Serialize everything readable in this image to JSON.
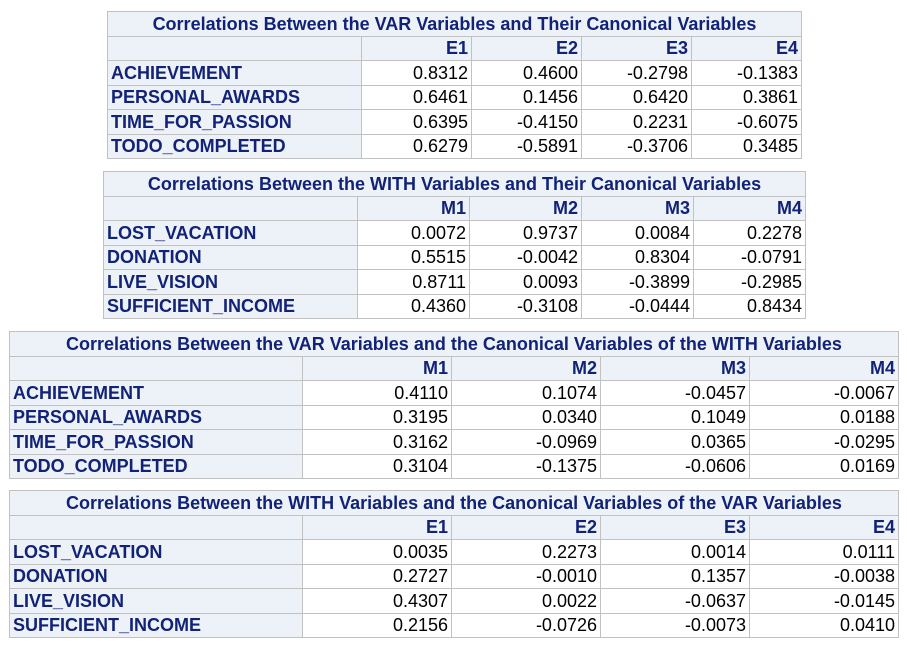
{
  "tables": [
    {
      "id": "var-canonical",
      "title": "Correlations Between the VAR Variables and Their Canonical Variables",
      "columns": [
        "E1",
        "E2",
        "E3",
        "E4"
      ],
      "rows": [
        {
          "label": "ACHIEVEMENT",
          "values": [
            "0.8312",
            "0.4600",
            "-0.2798",
            "-0.1383"
          ]
        },
        {
          "label": "PERSONAL_AWARDS",
          "values": [
            "0.6461",
            "0.1456",
            "0.6420",
            "0.3861"
          ]
        },
        {
          "label": "TIME_FOR_PASSION",
          "values": [
            "0.6395",
            "-0.4150",
            "0.2231",
            "-0.6075"
          ]
        },
        {
          "label": "TODO_COMPLETED",
          "values": [
            "0.6279",
            "-0.5891",
            "-0.3706",
            "0.3485"
          ]
        }
      ]
    },
    {
      "id": "with-canonical",
      "title": "Correlations Between the WITH Variables and Their Canonical Variables",
      "columns": [
        "M1",
        "M2",
        "M3",
        "M4"
      ],
      "rows": [
        {
          "label": "LOST_VACATION",
          "values": [
            "0.0072",
            "0.9737",
            "0.0084",
            "0.2278"
          ]
        },
        {
          "label": "DONATION",
          "values": [
            "0.5515",
            "-0.0042",
            "0.8304",
            "-0.0791"
          ]
        },
        {
          "label": "LIVE_VISION",
          "values": [
            "0.8711",
            "0.0093",
            "-0.3899",
            "-0.2985"
          ]
        },
        {
          "label": "SUFFICIENT_INCOME",
          "values": [
            "0.4360",
            "-0.3108",
            "-0.0444",
            "0.8434"
          ]
        }
      ]
    },
    {
      "id": "var-with-canonical",
      "title": "Correlations Between the VAR Variables and the Canonical Variables of the WITH Variables",
      "columns": [
        "M1",
        "M2",
        "M3",
        "M4"
      ],
      "rows": [
        {
          "label": "ACHIEVEMENT",
          "values": [
            "0.4110",
            "0.1074",
            "-0.0457",
            "-0.0067"
          ]
        },
        {
          "label": "PERSONAL_AWARDS",
          "values": [
            "0.3195",
            "0.0340",
            "0.1049",
            "0.0188"
          ]
        },
        {
          "label": "TIME_FOR_PASSION",
          "values": [
            "0.3162",
            "-0.0969",
            "0.0365",
            "-0.0295"
          ]
        },
        {
          "label": "TODO_COMPLETED",
          "values": [
            "0.3104",
            "-0.1375",
            "-0.0606",
            "0.0169"
          ]
        }
      ]
    },
    {
      "id": "with-var-canonical",
      "title": "Correlations Between the WITH Variables and the Canonical Variables of the VAR Variables",
      "columns": [
        "E1",
        "E2",
        "E3",
        "E4"
      ],
      "rows": [
        {
          "label": "LOST_VACATION",
          "values": [
            "0.0035",
            "0.2273",
            "0.0014",
            "0.0111"
          ]
        },
        {
          "label": "DONATION",
          "values": [
            "0.2727",
            "-0.0010",
            "0.1357",
            "-0.0038"
          ]
        },
        {
          "label": "LIVE_VISION",
          "values": [
            "0.4307",
            "0.0022",
            "-0.0637",
            "-0.0145"
          ]
        },
        {
          "label": "SUFFICIENT_INCOME",
          "values": [
            "0.2156",
            "-0.0726",
            "-0.0073",
            "0.0410"
          ]
        }
      ]
    }
  ]
}
